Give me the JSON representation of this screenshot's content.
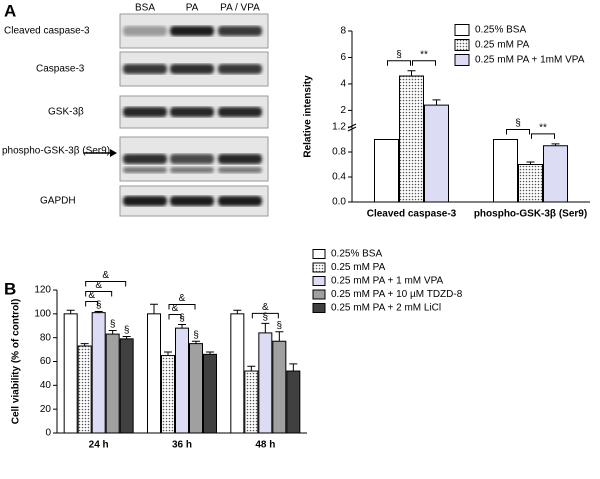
{
  "panels": [
    "A",
    "B"
  ],
  "blot": {
    "lanes": [
      "BSA",
      "PA",
      "PA / VPA"
    ],
    "rows": [
      "Cleaved caspase-3",
      "Caspase-3",
      "GSK-3β",
      "phospho-GSK-3β (Ser9)",
      "GAPDH"
    ]
  },
  "chart_data": [
    {
      "type": "bar",
      "ylabel": "Relative intensity",
      "categories": [
        "Cleaved caspase-3",
        "phospho-GSK-3β  (Ser9)"
      ],
      "ylim_lower": [
        0,
        1.2
      ],
      "ylim_upper": [
        1.2,
        8
      ],
      "yticks": [
        {
          "value": 0,
          "label": "0.0"
        },
        0.4,
        0.8,
        1.2,
        2,
        4,
        6,
        8
      ],
      "series": [
        {
          "name": "0.25% BSA",
          "color": "#ffffff",
          "pattern": "none",
          "values": [
            1.0,
            1.0
          ],
          "errors": [
            0,
            0
          ]
        },
        {
          "name": "0.25 mM PA",
          "color": "#ffffff",
          "pattern": "dots",
          "values": [
            4.6,
            0.6
          ],
          "errors": [
            0.4,
            0.04
          ]
        },
        {
          "name": "0.25 mM PA + 1mM VPA",
          "color": "#dcdcf5",
          "pattern": "none",
          "values": [
            2.4,
            0.9
          ],
          "errors": [
            0.4,
            0.03
          ]
        }
      ],
      "annotations": [
        {
          "text": "§",
          "category": 0,
          "series": [
            0,
            1
          ]
        },
        {
          "text": "**",
          "category": 0,
          "series": [
            1,
            2
          ]
        },
        {
          "text": "§",
          "category": 1,
          "series": [
            0,
            1
          ]
        },
        {
          "text": "**",
          "category": 1,
          "series": [
            1,
            2
          ]
        }
      ]
    },
    {
      "type": "bar",
      "ylabel": "Cell viability (% of control)",
      "categories": [
        "24 h",
        "36 h",
        "48 h"
      ],
      "ylim": [
        0,
        120
      ],
      "yticks": [
        0,
        20,
        40,
        60,
        80,
        100,
        120
      ],
      "series": [
        {
          "name": "0.25% BSA",
          "color": "#ffffff",
          "pattern": "none",
          "values": [
            100,
            100,
            100
          ],
          "errors": [
            3,
            8,
            3
          ]
        },
        {
          "name": "0.25 mM PA",
          "color": "#ffffff",
          "pattern": "dots",
          "values": [
            73,
            65,
            52
          ],
          "errors": [
            2,
            3,
            4
          ]
        },
        {
          "name": "0.25 mM PA + 1 mM VPA",
          "color": "#dcdcf5",
          "pattern": "none",
          "values": [
            101,
            88,
            84
          ],
          "errors": [
            1,
            3,
            8
          ]
        },
        {
          "name": "0.25 mM PA + 10 µM TDZD-8",
          "color": "#a0a0a0",
          "pattern": "none",
          "values": [
            83,
            75,
            77
          ],
          "errors": [
            3,
            2,
            8
          ]
        },
        {
          "name": "0.25 mM PA + 2 mM LiCl",
          "color": "#404040",
          "pattern": "none",
          "values": [
            79,
            66,
            52
          ],
          "errors": [
            2,
            2,
            6
          ]
        }
      ],
      "annotations": [
        {
          "text": "§",
          "category": 0,
          "series": [
            2
          ]
        },
        {
          "text": "§",
          "category": 0,
          "series": [
            3
          ]
        },
        {
          "text": "§",
          "category": 0,
          "series": [
            4
          ]
        },
        {
          "text": "&",
          "category": 0,
          "series": [
            1,
            2
          ]
        },
        {
          "text": "&",
          "category": 0,
          "series": [
            1,
            3
          ]
        },
        {
          "text": "&",
          "category": 0,
          "series": [
            1,
            4
          ]
        },
        {
          "text": "§",
          "category": 1,
          "series": [
            2
          ]
        },
        {
          "text": "§",
          "category": 1,
          "series": [
            3
          ]
        },
        {
          "text": "&",
          "category": 1,
          "series": [
            1,
            2
          ]
        },
        {
          "text": "&",
          "category": 1,
          "series": [
            1,
            3
          ]
        },
        {
          "text": "§",
          "category": 2,
          "series": [
            2
          ]
        },
        {
          "text": "§",
          "category": 2,
          "series": [
            3
          ]
        },
        {
          "text": "&",
          "category": 2,
          "series": [
            1,
            3
          ]
        }
      ]
    }
  ]
}
